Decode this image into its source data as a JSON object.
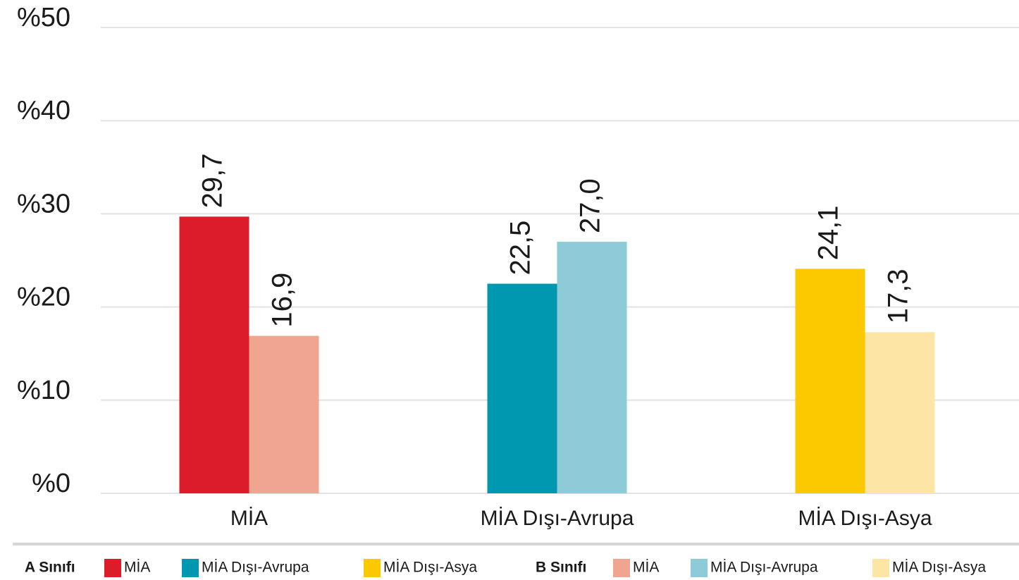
{
  "chart_data": {
    "type": "bar",
    "categories": [
      "MİA",
      "MİA Dışı-Avrupa",
      "MİA Dışı-Asya"
    ],
    "series": [
      {
        "name": "A Sınıfı",
        "colors": [
          "#dd1c2b",
          "#0098b0",
          "#fcc800"
        ],
        "values": [
          29.7,
          22.5,
          24.1
        ],
        "value_labels": [
          "29,7",
          "22,5",
          "24,1"
        ]
      },
      {
        "name": "B Sınıfı",
        "colors": [
          "#f0a591",
          "#8ecbd8",
          "#fde5a5"
        ],
        "values": [
          16.9,
          27.0,
          17.3
        ],
        "value_labels": [
          "16,9",
          "27,0",
          "17,3"
        ]
      }
    ],
    "ylim": [
      0,
      50
    ],
    "yticks": [
      {
        "value": 0,
        "label": "%0"
      },
      {
        "value": 10,
        "label": "%10"
      },
      {
        "value": 20,
        "label": "%20"
      },
      {
        "value": 30,
        "label": "%30"
      },
      {
        "value": 40,
        "label": "%40"
      },
      {
        "value": 50,
        "label": "%50"
      }
    ],
    "grid": true,
    "legend": "bottom"
  }
}
